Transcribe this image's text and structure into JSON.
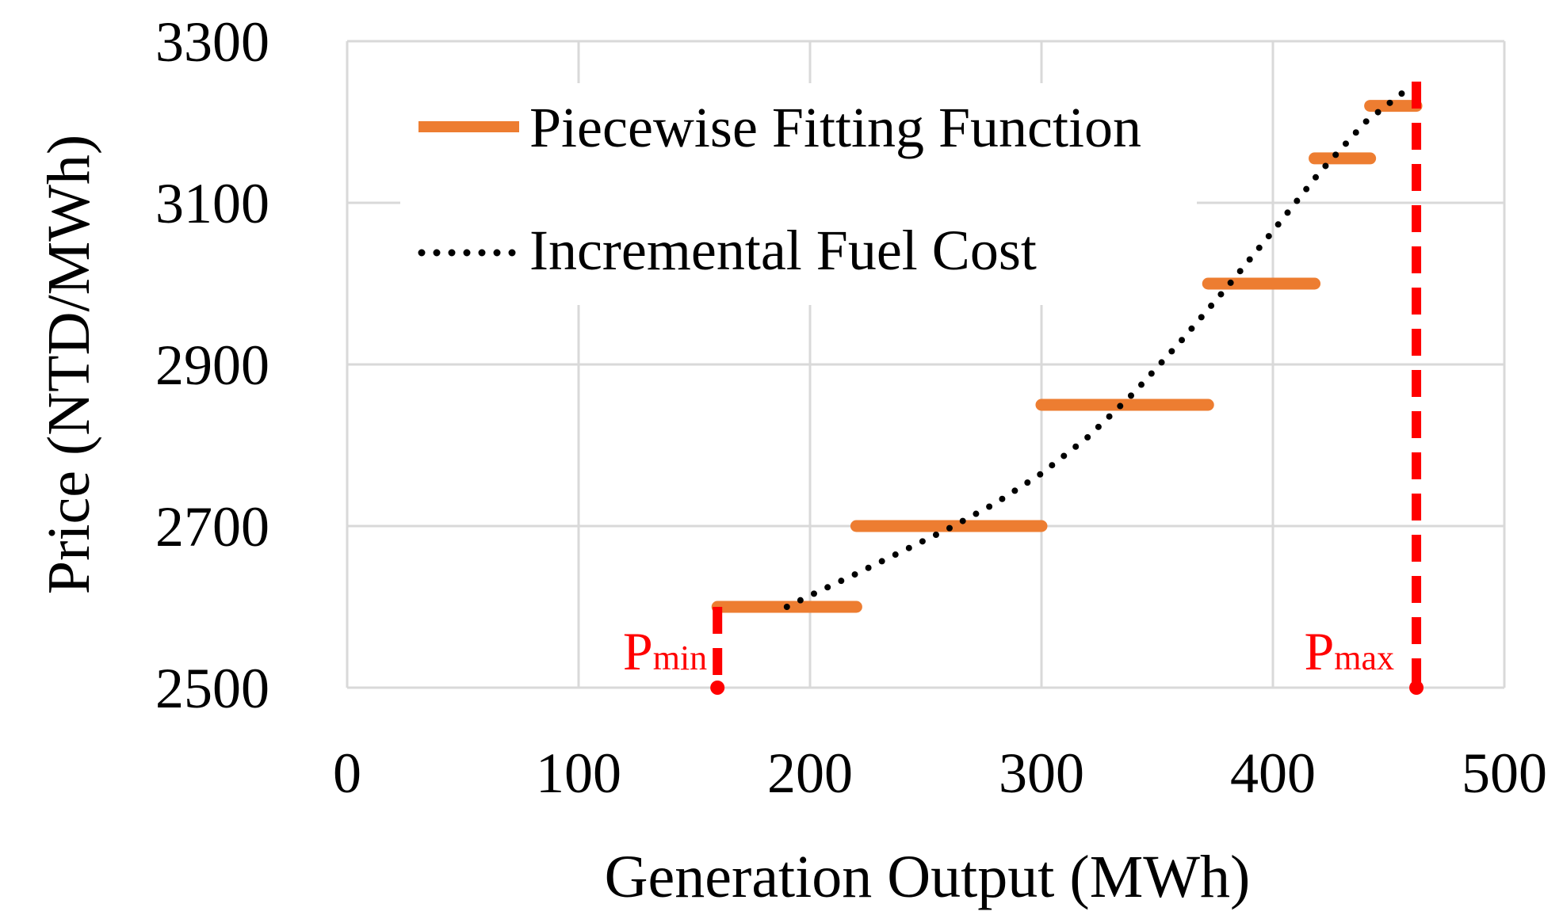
{
  "chart_data": {
    "type": "line",
    "title": "",
    "xlabel": "Generation Output (MWh)",
    "ylabel": "Price (NTD/MWh)",
    "xlim": [
      0,
      500
    ],
    "ylim": [
      2500,
      3300
    ],
    "xticks": [
      0,
      100,
      200,
      300,
      400,
      500
    ],
    "yticks": [
      2500,
      2700,
      2900,
      3100,
      3300
    ],
    "grid": true,
    "legend_position": "top-left",
    "colors": {
      "piecewise": "#ed7d31",
      "fuel_cost": "#000000",
      "bounds": "#ff0000",
      "grid": "#d9d9d9"
    },
    "series": [
      {
        "name": "Piecewise Fitting Function",
        "style": "solid-steps",
        "segments": [
          {
            "x_start": 160,
            "x_end": 220,
            "y": 2600
          },
          {
            "x_start": 220,
            "x_end": 300,
            "y": 2700
          },
          {
            "x_start": 300,
            "x_end": 372,
            "y": 2850
          },
          {
            "x_start": 372,
            "x_end": 418,
            "y": 3000
          },
          {
            "x_start": 418,
            "x_end": 442,
            "y": 3155
          },
          {
            "x_start": 442,
            "x_end": 462,
            "y": 3220
          }
        ]
      },
      {
        "name": "Incremental Fuel Cost",
        "style": "dotted",
        "x": [
          190,
          200,
          220,
          240,
          260,
          280,
          300,
          320,
          340,
          360,
          380,
          400,
          420,
          440,
          460
        ],
        "y": [
          2600,
          2614,
          2641,
          2669,
          2697,
          2728,
          2765,
          2810,
          2865,
          2928,
          2995,
          3065,
          3137,
          3200,
          3245
        ]
      }
    ],
    "markers": [
      {
        "label": "P",
        "subscript": "min",
        "x": 160,
        "y_from": 2500,
        "y_to": 2600
      },
      {
        "label": "P",
        "subscript": "max",
        "x": 462,
        "y_from": 2500,
        "y_to": 3250
      }
    ]
  }
}
